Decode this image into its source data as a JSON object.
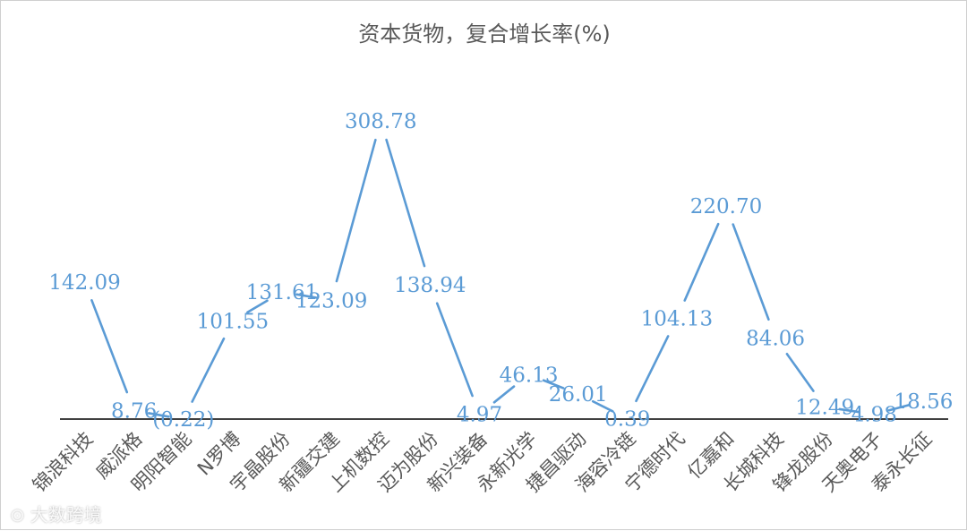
{
  "chart_data": {
    "type": "line",
    "title": "资本货物，复合增长率(%)",
    "categories": [
      "锦浪科技",
      "威派格",
      "明阳智能",
      "N罗博",
      "宇晶股份",
      "新疆交建",
      "上机数控",
      "迈为股份",
      "新兴装备",
      "永新光学",
      "捷昌驱动",
      "海容冷链",
      "宁德时代",
      "亿嘉和",
      "长城科技",
      "锋龙股份",
      "天奥电子",
      "泰永长征"
    ],
    "values": [
      142.09,
      8.76,
      -0.22,
      101.55,
      131.61,
      123.09,
      308.78,
      138.94,
      4.97,
      46.13,
      26.01,
      0.39,
      104.13,
      220.7,
      84.06,
      12.49,
      4.98,
      18.56
    ],
    "data_labels": [
      "142.09",
      "8.76",
      "(0.22)",
      "101.55",
      "131.61",
      "123.09",
      "308.78",
      "138.94",
      "4.97",
      "46.13",
      "26.01",
      "0.39",
      "104.13",
      "220.70",
      "84.06",
      "12.49",
      "4.98",
      "18.56"
    ],
    "xlabel": "",
    "ylabel": "",
    "ylim": [
      0,
      320
    ],
    "grid": false,
    "legend": "none",
    "colors": {
      "line": "#5b9bd5",
      "axis": "#000000",
      "text": "#595959"
    }
  },
  "watermark": {
    "icon": "camera-icon",
    "text": "大数跨境"
  }
}
